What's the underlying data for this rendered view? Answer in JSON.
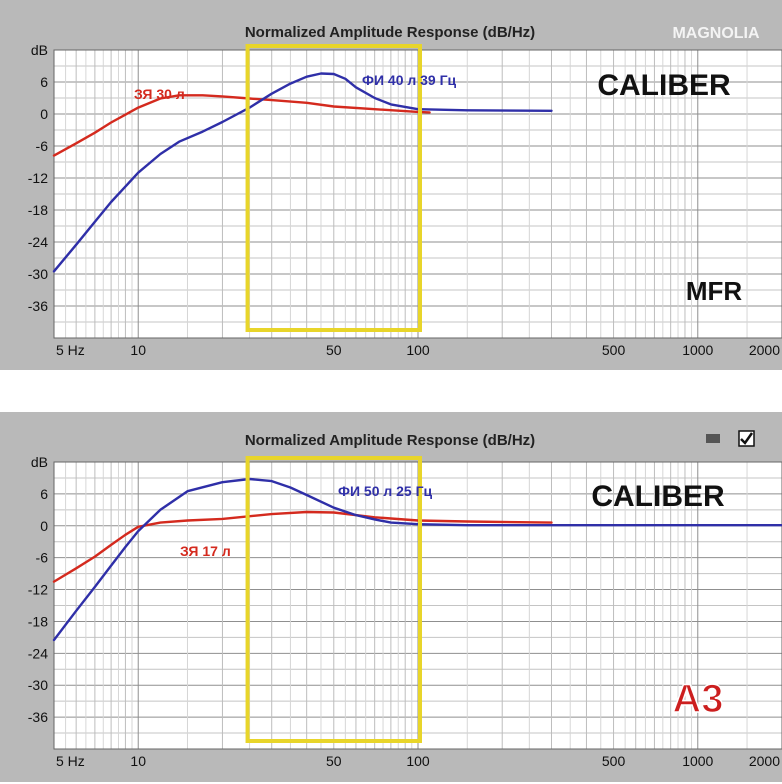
{
  "chart_data": [
    {
      "type": "line",
      "title": "Normalized Amplitude Response (dB/Hz)",
      "xscale": "log",
      "xlim": [
        5,
        2000
      ],
      "ylim": [
        -42,
        12
      ],
      "ylabel": "dB",
      "y_ticks": [
        "dB",
        "6",
        "0",
        "-6",
        "-12",
        "-18",
        "-24",
        "-30",
        "-36"
      ],
      "x_ticks": [
        {
          "value": 5,
          "label": "5 Hz"
        },
        {
          "value": 10,
          "label": "10"
        },
        {
          "value": 50,
          "label": "50"
        },
        {
          "value": 100,
          "label": "100"
        },
        {
          "value": 500,
          "label": "500"
        },
        {
          "value": 1000,
          "label": "1000"
        },
        {
          "value": 2000,
          "label": "2000"
        }
      ],
      "grid": true,
      "highlight_range": [
        25,
        100
      ],
      "brand": "CALIBER",
      "badge": "MFR",
      "logo": "MAGNOLIA",
      "series": [
        {
          "name": "ЗЯ 30 л",
          "color": "#d42a1e",
          "x": [
            5,
            6,
            7,
            8,
            10,
            12,
            14,
            17,
            20,
            25,
            30,
            40,
            50,
            70,
            100,
            110
          ],
          "y": [
            -7.8,
            -5.5,
            -3.5,
            -1.6,
            1.2,
            2.9,
            3.5,
            3.5,
            3.3,
            2.9,
            2.6,
            2.1,
            1.4,
            0.9,
            0.4,
            0.3
          ]
        },
        {
          "name": "ФИ 40 л 39 Гц",
          "color": "#2f2fa8",
          "x": [
            5,
            6,
            7,
            8,
            10,
            12,
            14,
            17,
            20,
            25,
            30,
            35,
            40,
            45,
            50,
            55,
            60,
            70,
            80,
            100,
            150,
            300
          ],
          "y": [
            -29.5,
            -24.5,
            -20.2,
            -16.5,
            -11,
            -7.5,
            -5.2,
            -3.3,
            -1.5,
            1.2,
            3.8,
            5.7,
            7,
            7.6,
            7.5,
            6.6,
            5,
            3,
            1.8,
            0.9,
            0.7,
            0.6
          ]
        }
      ]
    },
    {
      "type": "line",
      "title": "Normalized Amplitude Response (dB/Hz)",
      "xscale": "log",
      "xlim": [
        5,
        2000
      ],
      "ylim": [
        -42,
        12
      ],
      "ylabel": "dB",
      "y_ticks": [
        "dB",
        "6",
        "0",
        "-6",
        "-12",
        "-18",
        "-24",
        "-30",
        "-36"
      ],
      "x_ticks": [
        {
          "value": 5,
          "label": "5 Hz"
        },
        {
          "value": 10,
          "label": "10"
        },
        {
          "value": 50,
          "label": "50"
        },
        {
          "value": 100,
          "label": "100"
        },
        {
          "value": 500,
          "label": "500"
        },
        {
          "value": 1000,
          "label": "1000"
        },
        {
          "value": 2000,
          "label": "2000"
        }
      ],
      "grid": true,
      "highlight_range": [
        25,
        100
      ],
      "brand": "CALIBER",
      "badge": "A3",
      "series": [
        {
          "name": "ЗЯ 17 л",
          "color": "#d42a1e",
          "x": [
            5,
            6,
            7,
            8,
            9,
            10,
            12,
            15,
            20,
            30,
            40,
            50,
            70,
            100,
            150,
            300
          ],
          "y": [
            -10.5,
            -8,
            -5.8,
            -3.6,
            -1.7,
            -0.2,
            0.6,
            1,
            1.3,
            2.2,
            2.6,
            2.5,
            1.6,
            1,
            0.8,
            0.6
          ]
        },
        {
          "name": "ФИ 50 л 25 Гц",
          "color": "#2f2fa8",
          "x": [
            5,
            6,
            7,
            8,
            9,
            10,
            12,
            15,
            20,
            25,
            30,
            35,
            40,
            50,
            60,
            70,
            80,
            100,
            150,
            2000
          ],
          "y": [
            -21.5,
            -16,
            -11.5,
            -7.5,
            -4,
            -1,
            3,
            6.5,
            8.2,
            8.8,
            8.4,
            7.2,
            5.8,
            3.4,
            2,
            1.2,
            0.6,
            0.3,
            0.1,
            0.1
          ]
        }
      ]
    }
  ]
}
